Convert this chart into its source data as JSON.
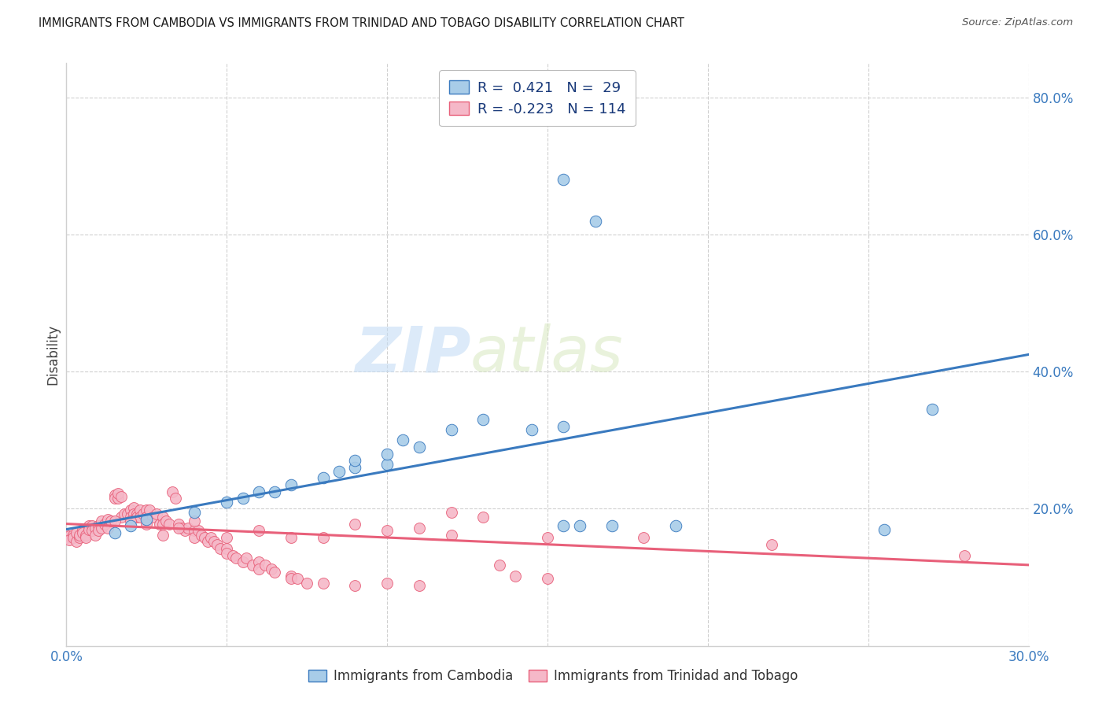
{
  "title": "IMMIGRANTS FROM CAMBODIA VS IMMIGRANTS FROM TRINIDAD AND TOBAGO DISABILITY CORRELATION CHART",
  "source": "Source: ZipAtlas.com",
  "ylabel": "Disability",
  "xlim": [
    0.0,
    0.3
  ],
  "ylim": [
    0.0,
    0.85
  ],
  "xticks": [
    0.0,
    0.05,
    0.1,
    0.15,
    0.2,
    0.25,
    0.3
  ],
  "xticklabels": [
    "0.0%",
    "",
    "",
    "",
    "",
    "",
    "30.0%"
  ],
  "yticks": [
    0.0,
    0.2,
    0.4,
    0.6,
    0.8
  ],
  "yticklabels": [
    "",
    "20.0%",
    "40.0%",
    "60.0%",
    "80.0%"
  ],
  "legend_r_cambodia": "0.421",
  "legend_n_cambodia": "29",
  "legend_r_trinidad": "-0.223",
  "legend_n_trinidad": "114",
  "blue_color": "#a8cce8",
  "pink_color": "#f5b8c8",
  "blue_line_color": "#3a7abf",
  "pink_line_color": "#e8607a",
  "blue_scatter": [
    [
      0.015,
      0.165
    ],
    [
      0.02,
      0.175
    ],
    [
      0.025,
      0.185
    ],
    [
      0.04,
      0.195
    ],
    [
      0.05,
      0.21
    ],
    [
      0.055,
      0.215
    ],
    [
      0.06,
      0.225
    ],
    [
      0.065,
      0.225
    ],
    [
      0.07,
      0.235
    ],
    [
      0.08,
      0.245
    ],
    [
      0.085,
      0.255
    ],
    [
      0.09,
      0.26
    ],
    [
      0.09,
      0.27
    ],
    [
      0.1,
      0.265
    ],
    [
      0.1,
      0.28
    ],
    [
      0.105,
      0.3
    ],
    [
      0.11,
      0.29
    ],
    [
      0.12,
      0.315
    ],
    [
      0.13,
      0.33
    ],
    [
      0.145,
      0.315
    ],
    [
      0.155,
      0.32
    ],
    [
      0.155,
      0.175
    ],
    [
      0.16,
      0.175
    ],
    [
      0.155,
      0.68
    ],
    [
      0.165,
      0.62
    ],
    [
      0.19,
      0.175
    ],
    [
      0.17,
      0.175
    ],
    [
      0.255,
      0.17
    ],
    [
      0.27,
      0.345
    ]
  ],
  "pink_scatter": [
    [
      0.0,
      0.158
    ],
    [
      0.0,
      0.162
    ],
    [
      0.001,
      0.16
    ],
    [
      0.001,
      0.155
    ],
    [
      0.002,
      0.162
    ],
    [
      0.002,
      0.158
    ],
    [
      0.003,
      0.165
    ],
    [
      0.003,
      0.152
    ],
    [
      0.004,
      0.158
    ],
    [
      0.004,
      0.162
    ],
    [
      0.005,
      0.17
    ],
    [
      0.005,
      0.165
    ],
    [
      0.006,
      0.162
    ],
    [
      0.006,
      0.158
    ],
    [
      0.007,
      0.175
    ],
    [
      0.007,
      0.17
    ],
    [
      0.008,
      0.175
    ],
    [
      0.008,
      0.168
    ],
    [
      0.009,
      0.172
    ],
    [
      0.009,
      0.162
    ],
    [
      0.01,
      0.175
    ],
    [
      0.01,
      0.168
    ],
    [
      0.011,
      0.182
    ],
    [
      0.011,
      0.172
    ],
    [
      0.012,
      0.178
    ],
    [
      0.013,
      0.185
    ],
    [
      0.013,
      0.172
    ],
    [
      0.014,
      0.182
    ],
    [
      0.015,
      0.22
    ],
    [
      0.015,
      0.215
    ],
    [
      0.016,
      0.215
    ],
    [
      0.016,
      0.222
    ],
    [
      0.017,
      0.218
    ],
    [
      0.017,
      0.188
    ],
    [
      0.018,
      0.192
    ],
    [
      0.019,
      0.192
    ],
    [
      0.02,
      0.198
    ],
    [
      0.02,
      0.188
    ],
    [
      0.021,
      0.202
    ],
    [
      0.021,
      0.192
    ],
    [
      0.022,
      0.192
    ],
    [
      0.022,
      0.188
    ],
    [
      0.023,
      0.198
    ],
    [
      0.023,
      0.188
    ],
    [
      0.024,
      0.192
    ],
    [
      0.025,
      0.198
    ],
    [
      0.025,
      0.188
    ],
    [
      0.026,
      0.198
    ],
    [
      0.027,
      0.188
    ],
    [
      0.028,
      0.192
    ],
    [
      0.029,
      0.178
    ],
    [
      0.03,
      0.188
    ],
    [
      0.03,
      0.178
    ],
    [
      0.031,
      0.182
    ],
    [
      0.032,
      0.178
    ],
    [
      0.033,
      0.225
    ],
    [
      0.034,
      0.215
    ],
    [
      0.035,
      0.178
    ],
    [
      0.036,
      0.172
    ],
    [
      0.037,
      0.168
    ],
    [
      0.038,
      0.172
    ],
    [
      0.04,
      0.168
    ],
    [
      0.04,
      0.158
    ],
    [
      0.041,
      0.168
    ],
    [
      0.042,
      0.162
    ],
    [
      0.043,
      0.158
    ],
    [
      0.044,
      0.152
    ],
    [
      0.045,
      0.158
    ],
    [
      0.046,
      0.152
    ],
    [
      0.047,
      0.148
    ],
    [
      0.048,
      0.142
    ],
    [
      0.05,
      0.142
    ],
    [
      0.05,
      0.135
    ],
    [
      0.052,
      0.132
    ],
    [
      0.053,
      0.128
    ],
    [
      0.055,
      0.122
    ],
    [
      0.056,
      0.128
    ],
    [
      0.058,
      0.118
    ],
    [
      0.06,
      0.122
    ],
    [
      0.06,
      0.112
    ],
    [
      0.062,
      0.118
    ],
    [
      0.064,
      0.112
    ],
    [
      0.065,
      0.108
    ],
    [
      0.07,
      0.102
    ],
    [
      0.07,
      0.098
    ],
    [
      0.072,
      0.098
    ],
    [
      0.075,
      0.092
    ],
    [
      0.08,
      0.092
    ],
    [
      0.09,
      0.088
    ],
    [
      0.1,
      0.092
    ],
    [
      0.11,
      0.088
    ],
    [
      0.12,
      0.195
    ],
    [
      0.13,
      0.188
    ],
    [
      0.135,
      0.118
    ],
    [
      0.14,
      0.102
    ],
    [
      0.15,
      0.098
    ],
    [
      0.05,
      0.158
    ],
    [
      0.06,
      0.168
    ],
    [
      0.07,
      0.158
    ],
    [
      0.08,
      0.158
    ],
    [
      0.09,
      0.178
    ],
    [
      0.1,
      0.168
    ],
    [
      0.11,
      0.172
    ],
    [
      0.12,
      0.162
    ],
    [
      0.15,
      0.158
    ],
    [
      0.18,
      0.158
    ],
    [
      0.22,
      0.148
    ],
    [
      0.28,
      0.132
    ],
    [
      0.015,
      0.182
    ],
    [
      0.02,
      0.182
    ],
    [
      0.025,
      0.178
    ],
    [
      0.03,
      0.162
    ],
    [
      0.035,
      0.172
    ],
    [
      0.04,
      0.182
    ]
  ],
  "blue_trendline": [
    [
      0.0,
      0.17
    ],
    [
      0.3,
      0.425
    ]
  ],
  "pink_trendline": [
    [
      0.0,
      0.178
    ],
    [
      0.3,
      0.118
    ]
  ],
  "watermark_zip": "ZIP",
  "watermark_atlas": "atlas",
  "background_color": "#ffffff",
  "grid_color": "#d0d0d0",
  "tick_color": "#3a7abf"
}
